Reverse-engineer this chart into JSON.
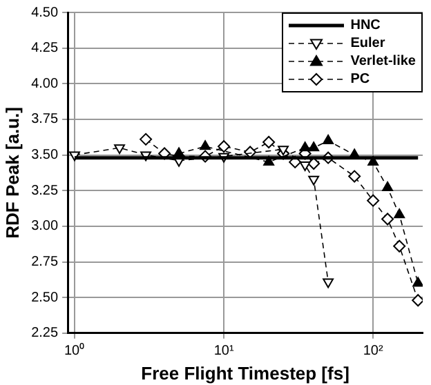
{
  "chart_data": {
    "type": "line",
    "xlabel": "Free Flight Timestep [fs]",
    "ylabel": "RDF Peak [a.u.]",
    "log": "x",
    "xlim": [
      0.9,
      215
    ],
    "xticks": [
      {
        "value": 1,
        "label": "10⁰"
      },
      {
        "value": 10,
        "label": "10¹"
      },
      {
        "value": 100,
        "label": "10²"
      }
    ],
    "ylim": [
      2.25,
      4.5
    ],
    "yticks": [
      2.25,
      {
        "value": 2.5,
        "label": "2.50"
      },
      2.75,
      {
        "value": 3,
        "label": "3.00"
      },
      3.25,
      {
        "value": 3.5,
        "label": "3.50"
      },
      3.75,
      {
        "value": 4,
        "label": "4.00"
      },
      4.25,
      {
        "value": 4.5,
        "label": "4.50"
      }
    ],
    "grid": true,
    "legend": "top right",
    "series": [
      {
        "name": "HNC",
        "color": "#000000",
        "x": [
          1,
          200
        ],
        "values": [
          3.48,
          3.48
        ],
        "marker": "none",
        "line_style": "solid"
      },
      {
        "name": "Euler",
        "color": "#000000",
        "x": [
          1,
          2,
          3,
          5,
          10,
          25,
          35,
          40,
          50
        ],
        "values": [
          3.5,
          3.55,
          3.5,
          3.46,
          3.49,
          3.54,
          3.43,
          3.33,
          2.61
        ],
        "marker": "triangle-down",
        "line_style": "dashed"
      },
      {
        "name": "Verlet-like",
        "color": "#000000",
        "x": [
          5,
          7.5,
          20,
          35,
          40,
          50,
          75,
          100,
          125,
          150,
          200
        ],
        "values": [
          3.51,
          3.56,
          3.45,
          3.55,
          3.55,
          3.6,
          3.5,
          3.45,
          3.27,
          3.08,
          2.6
        ],
        "marker": "triangle",
        "line_style": "dashed"
      },
      {
        "name": "PC",
        "color": "#000000",
        "x": [
          3,
          4,
          5,
          7.5,
          10,
          15,
          20,
          25,
          30,
          35,
          40,
          50,
          75,
          100,
          125,
          150,
          200
        ],
        "values": [
          3.61,
          3.51,
          3.49,
          3.49,
          3.56,
          3.52,
          3.59,
          3.51,
          3.45,
          3.51,
          3.44,
          3.48,
          3.35,
          3.18,
          3.05,
          2.86,
          2.48
        ],
        "marker": "diamond",
        "line_style": "dashed"
      }
    ]
  }
}
